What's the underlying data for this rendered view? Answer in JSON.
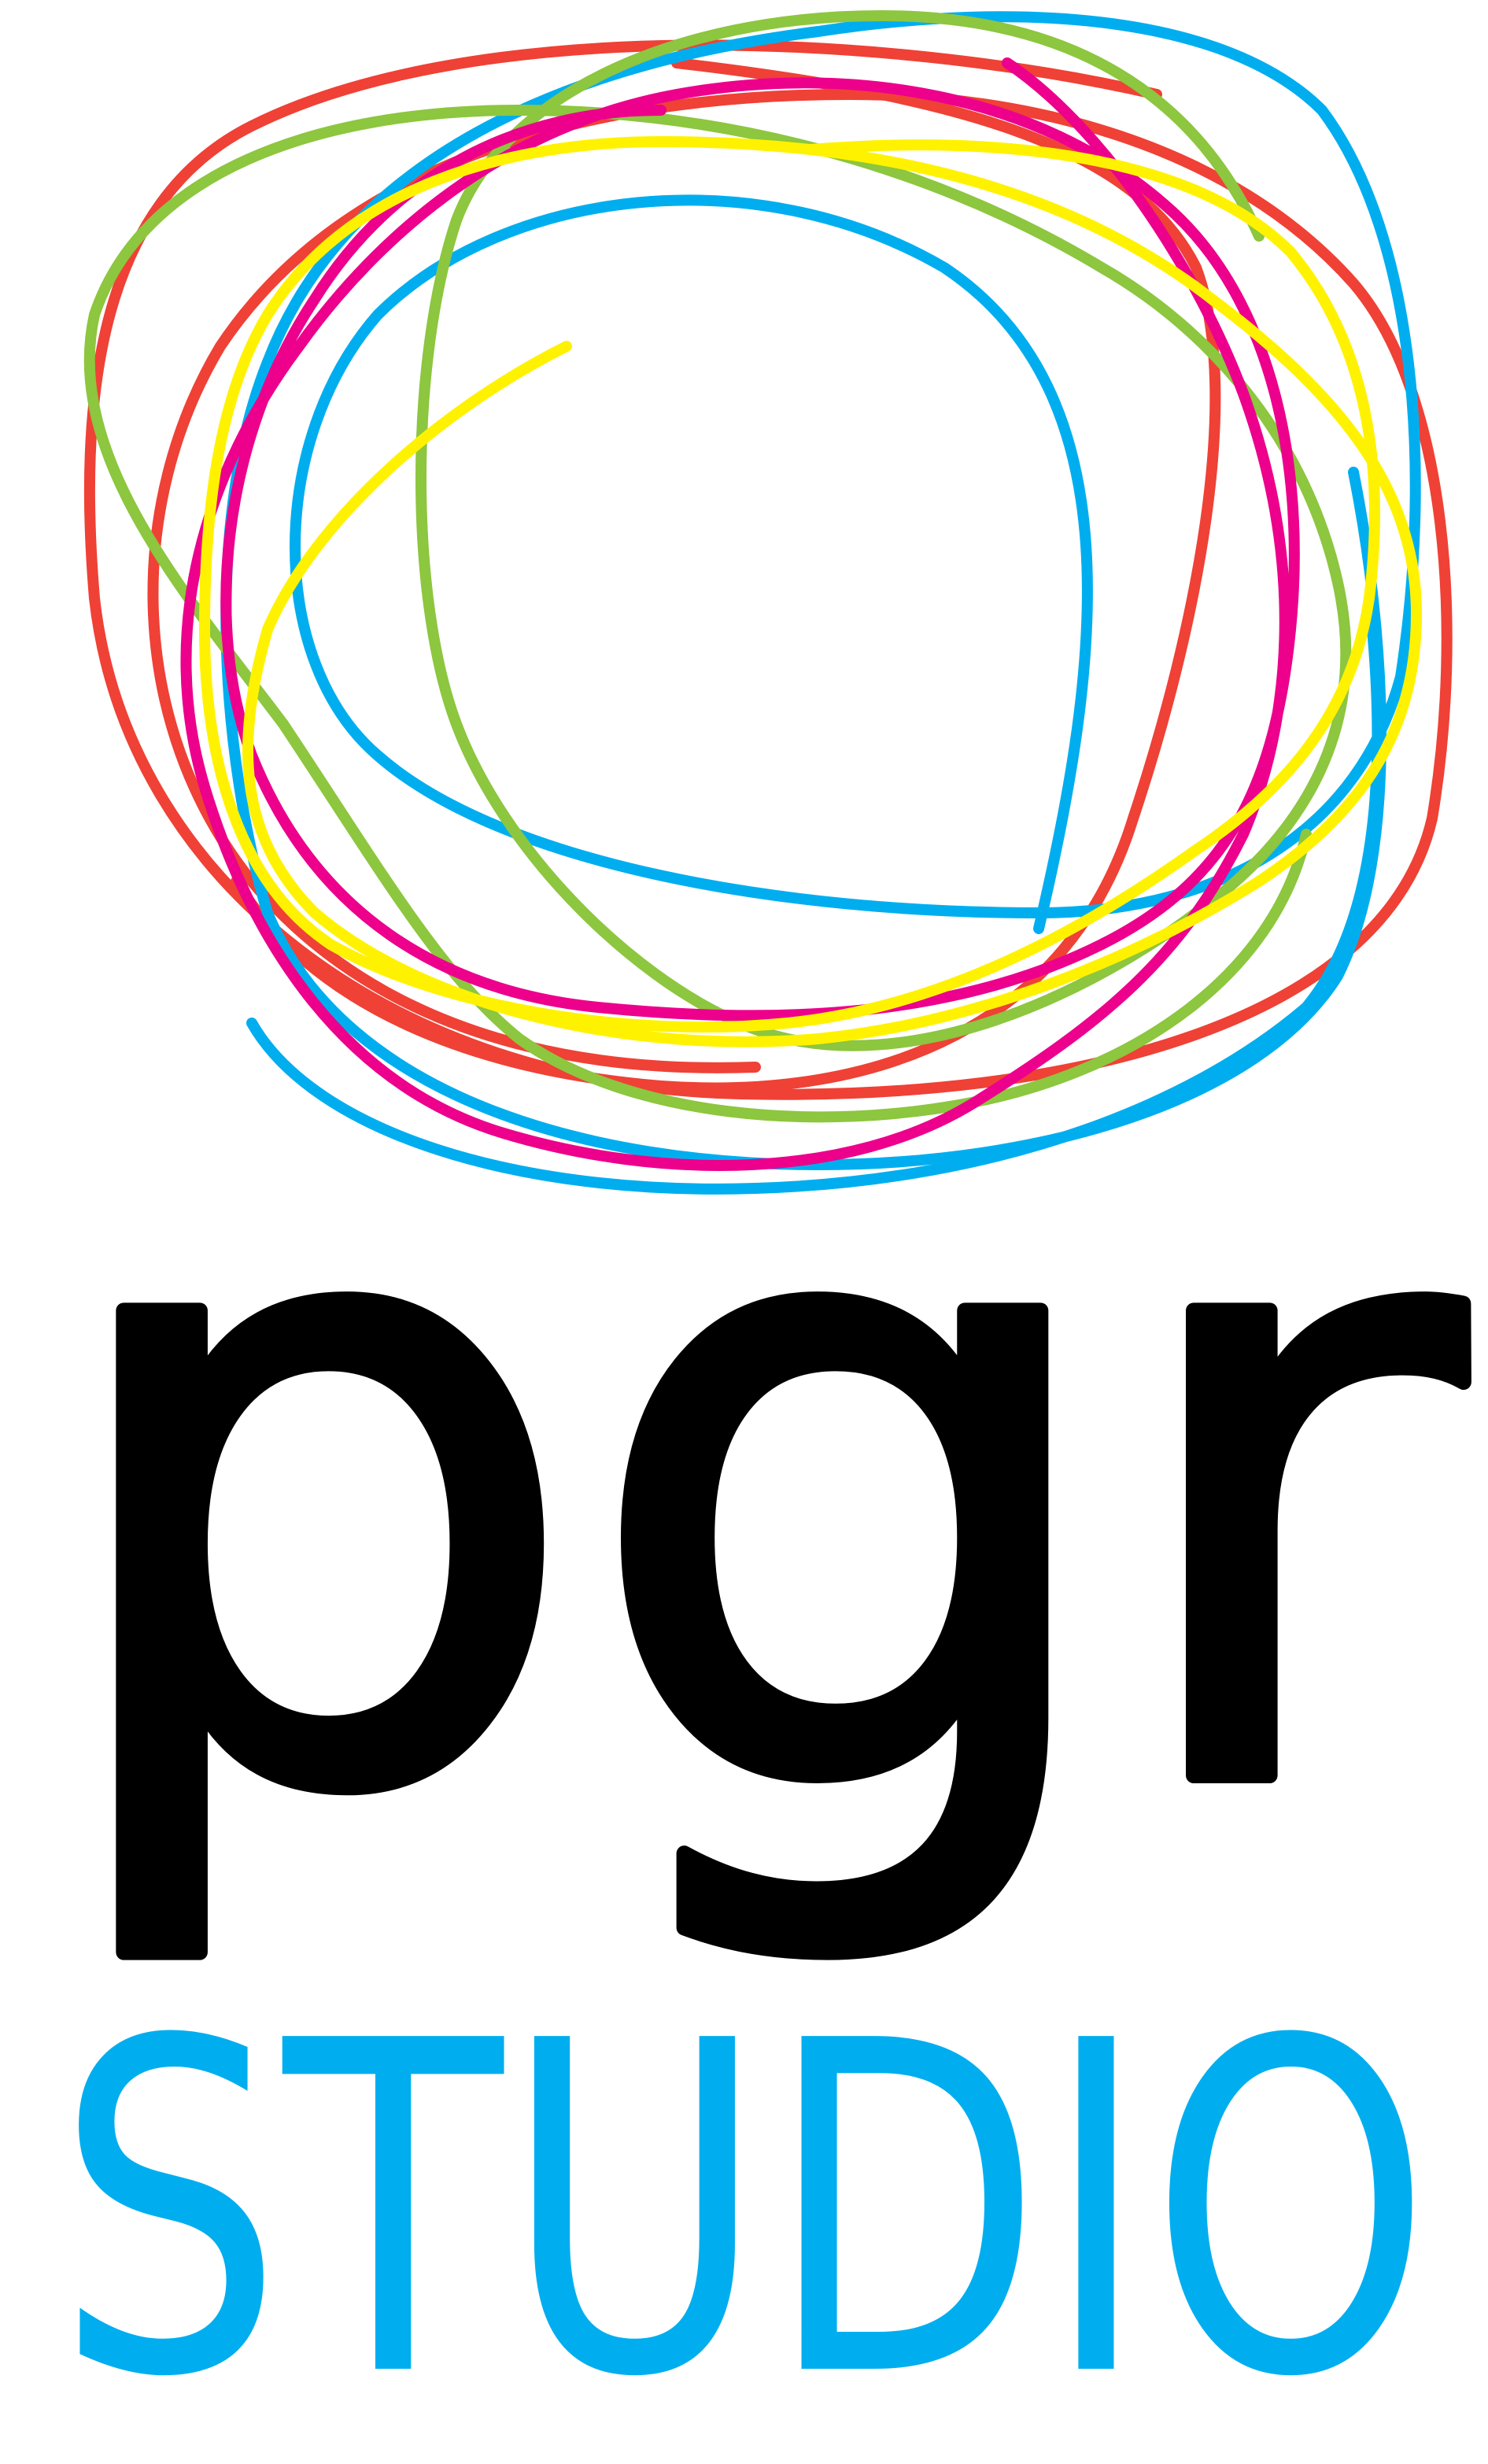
{
  "logo": {
    "wordmark": "pgr",
    "tagline": "STUDIO"
  }
}
